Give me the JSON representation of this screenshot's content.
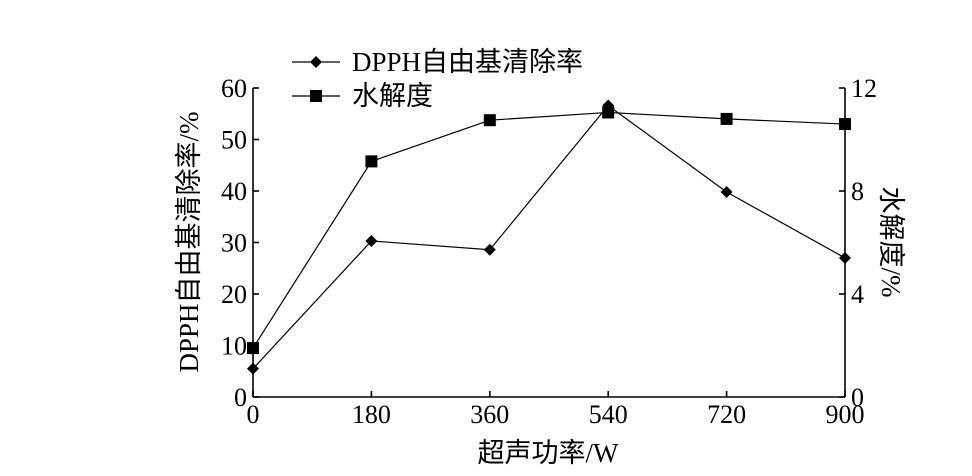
{
  "chart_data": {
    "type": "line",
    "xlabel": "超声功率/W",
    "ylabel": "DPPH自由基清除率/%",
    "y2label": "水解度/%",
    "x": [
      0,
      180,
      360,
      540,
      720,
      900
    ],
    "xlim": [
      0,
      900
    ],
    "ylim": [
      0,
      60
    ],
    "y2lim": [
      0,
      12
    ],
    "x_ticks": [
      "0",
      "180",
      "360",
      "540",
      "720",
      "900"
    ],
    "y_ticks": [
      "0",
      "10",
      "20",
      "30",
      "40",
      "50",
      "60"
    ],
    "y2_ticks": [
      "0",
      "4",
      "8",
      "12"
    ],
    "grid": false,
    "legend_position": "top-left",
    "series": [
      {
        "name": "DPPH自由基清除率",
        "axis": "left",
        "marker": "diamond",
        "values": [
          5.5,
          30.3,
          28.6,
          56.6,
          39.8,
          27.0
        ]
      },
      {
        "name": "水解度",
        "axis": "right",
        "marker": "square",
        "values": [
          1.9,
          9.15,
          10.75,
          11.05,
          10.8,
          10.6
        ]
      }
    ]
  }
}
